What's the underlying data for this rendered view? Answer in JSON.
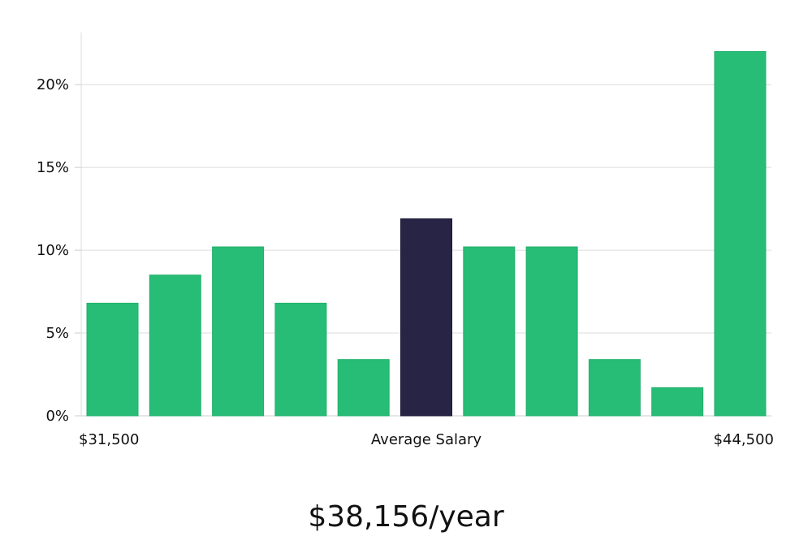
{
  "chart_data": {
    "type": "bar",
    "values": [
      6.8,
      8.5,
      10.2,
      6.8,
      3.4,
      11.9,
      10.2,
      10.2,
      3.4,
      1.7,
      22.0
    ],
    "highlight_index": 5,
    "ylim": [
      0,
      23
    ],
    "yticks": [
      0,
      5,
      10,
      15,
      20
    ],
    "ytick_labels": [
      "0%",
      "5%",
      "10%",
      "15%",
      "20%"
    ],
    "x_labels": {
      "left": "$31,500",
      "center": "Average Salary",
      "right": "$44,500"
    },
    "grid": true,
    "colors": {
      "bar": "#27bd76",
      "highlight": "#272446",
      "grid": "#dcdcdc",
      "axis": "#cccccc"
    }
  },
  "summary": "$38,156/year"
}
